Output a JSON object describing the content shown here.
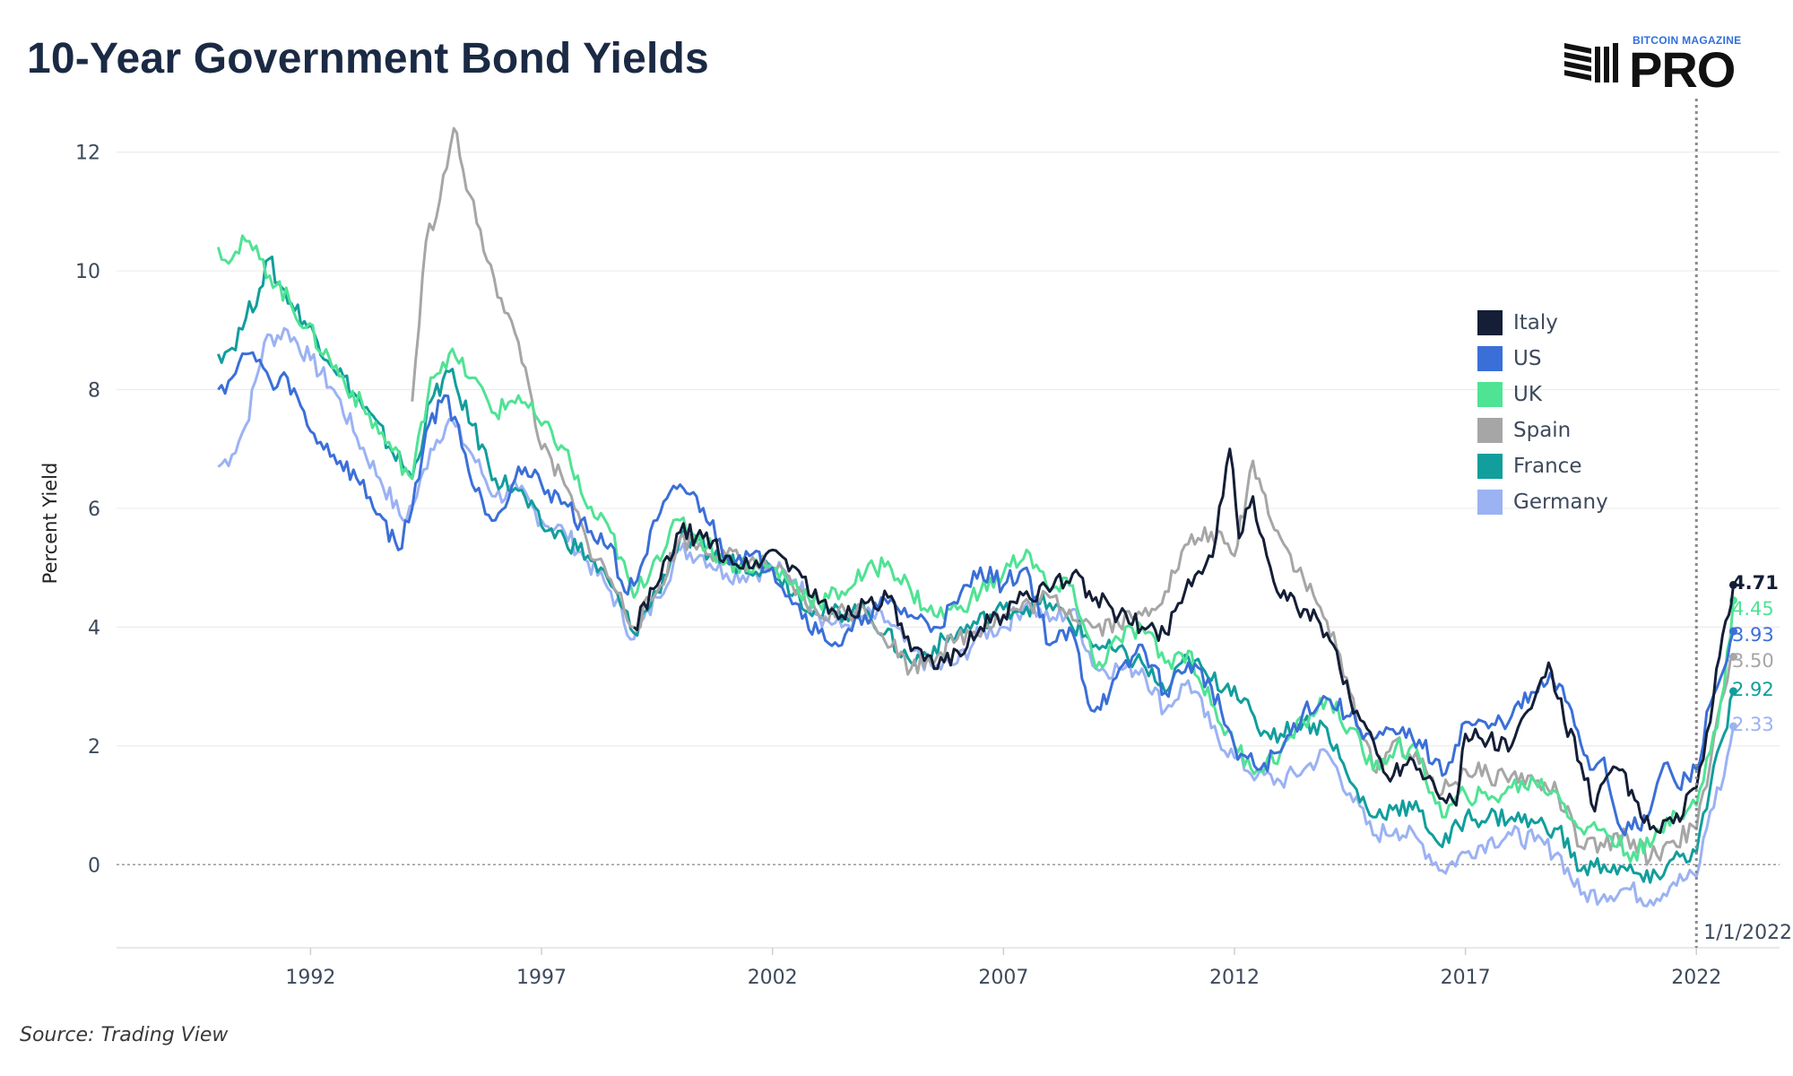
{
  "title": "10-Year Government Bond Yields",
  "logo": {
    "small_text": "BITCOIN MAGAZINE",
    "big_text": "PRO"
  },
  "source": "Source: Trading View",
  "colors": {
    "Italy": "#141e36",
    "US": "#3b6fd8",
    "UK": "#4fe394",
    "Spain": "#a6a6a6",
    "France": "#119e9c",
    "Germany": "#9bb2f3"
  },
  "chart_data": {
    "type": "line",
    "title": "10-Year Government Bond Yields",
    "xlabel": "",
    "ylabel": "Percent Yield",
    "xlim": [
      1987.8,
      2023.8
    ],
    "ylim": [
      -1.4,
      12.9
    ],
    "xticks": [
      1992,
      1997,
      2002,
      2007,
      2012,
      2017,
      2022
    ],
    "yticks": [
      0,
      2,
      4,
      6,
      8,
      10,
      12
    ],
    "grid": "horizontal",
    "legend": "right",
    "annotation": {
      "x": 2022,
      "label": "1/1/2022",
      "style": "dotted-vertical"
    },
    "zero_line": "dotted",
    "series": [
      {
        "name": "Germany",
        "color": "#9bb2f3",
        "end_label": "2.33",
        "x": [
          1990.0,
          1990.3,
          1990.6,
          1991.0,
          1991.5,
          1992.0,
          1992.5,
          1993.0,
          1993.5,
          1994.0,
          1994.3,
          1994.6,
          1995.0,
          1995.5,
          1996.0,
          1996.5,
          1997.0,
          1997.5,
          1998.0,
          1998.5,
          1999.0,
          1999.5,
          2000.0,
          2000.5,
          2001.0,
          2001.5,
          2002.0,
          2002.5,
          2003.0,
          2003.5,
          2004.0,
          2004.5,
          2005.0,
          2005.5,
          2006.0,
          2006.5,
          2007.0,
          2007.5,
          2008.0,
          2008.5,
          2009.0,
          2009.5,
          2010.0,
          2010.5,
          2011.0,
          2011.5,
          2012.0,
          2012.5,
          2013.0,
          2013.5,
          2014.0,
          2014.5,
          2015.0,
          2015.5,
          2016.0,
          2016.5,
          2017.0,
          2017.5,
          2018.0,
          2018.5,
          2019.0,
          2019.5,
          2020.0,
          2020.5,
          2021.0,
          2021.5,
          2022.0,
          2022.3,
          2022.6,
          2022.8
        ],
        "values": [
          6.7,
          6.9,
          7.4,
          8.8,
          9.0,
          8.5,
          8.0,
          7.2,
          6.5,
          5.8,
          6.2,
          7.0,
          7.5,
          6.9,
          6.2,
          6.3,
          5.8,
          5.6,
          5.1,
          4.6,
          3.8,
          4.5,
          5.3,
          5.2,
          4.9,
          4.9,
          5.0,
          4.8,
          4.2,
          4.0,
          4.2,
          4.1,
          3.6,
          3.3,
          3.4,
          3.9,
          4.0,
          4.4,
          4.1,
          4.3,
          3.3,
          3.3,
          3.3,
          2.6,
          3.1,
          2.3,
          1.8,
          1.5,
          1.4,
          1.6,
          1.9,
          1.2,
          0.5,
          0.6,
          0.4,
          -0.1,
          0.2,
          0.4,
          0.5,
          0.4,
          0.2,
          -0.5,
          -0.5,
          -0.4,
          -0.6,
          -0.3,
          -0.2,
          0.9,
          1.5,
          2.33
        ]
      },
      {
        "name": "France",
        "color": "#119e9c",
        "end_label": "2.92",
        "x": [
          1990.0,
          1990.3,
          1990.6,
          1990.9,
          1991.1,
          1991.3,
          1994.2,
          1994.6,
          1995.0,
          1995.5,
          1996.0,
          1996.5,
          1997.0,
          1997.5,
          1998.0,
          1998.5,
          1999.0,
          1999.5,
          2000.0,
          2001.0,
          2002.0,
          2003.0,
          2004.0,
          2005.0,
          2006.0,
          2007.0,
          2008.0,
          2009.0,
          2010.0,
          2010.5,
          2011.0,
          2011.5,
          2012.0,
          2012.5,
          2013.0,
          2013.5,
          2014.0,
          2014.5,
          2015.0,
          2015.5,
          2016.0,
          2016.5,
          2017.0,
          2017.5,
          2018.0,
          2018.5,
          2019.0,
          2019.5,
          2020.0,
          2020.5,
          2021.0,
          2021.5,
          2022.0,
          2022.3,
          2022.6,
          2022.8
        ],
        "values": [
          8.6,
          8.7,
          9.2,
          9.7,
          10.2,
          9.8,
          6.5,
          7.8,
          8.3,
          7.4,
          6.5,
          6.3,
          5.7,
          5.5,
          5.2,
          4.7,
          3.9,
          4.6,
          5.5,
          5.1,
          5.0,
          4.2,
          4.3,
          3.4,
          3.9,
          4.3,
          4.4,
          3.7,
          3.4,
          2.9,
          3.5,
          3.1,
          3.0,
          2.3,
          2.2,
          2.4,
          2.3,
          1.4,
          0.8,
          1.0,
          0.9,
          0.3,
          0.8,
          0.8,
          0.8,
          0.7,
          0.6,
          -0.1,
          0.0,
          -0.1,
          -0.3,
          0.1,
          0.2,
          1.3,
          2.2,
          2.92
        ]
      },
      {
        "name": "Spain",
        "color": "#a6a6a6",
        "end_label": "3.50",
        "x": [
          1994.2,
          1994.5,
          1994.8,
          1995.1,
          1995.3,
          1995.6,
          1995.9,
          1996.2,
          1996.5,
          1996.8,
          1997.0,
          1997.5,
          1998.0,
          1998.5,
          1999.0,
          1999.5,
          2000.0,
          2001.0,
          2002.0,
          2003.0,
          2004.0,
          2005.0,
          2006.0,
          2007.0,
          2008.0,
          2009.0,
          2010.0,
          2010.5,
          2011.0,
          2011.5,
          2012.0,
          2012.4,
          2012.6,
          2013.0,
          2013.5,
          2014.0,
          2014.5,
          2015.0,
          2015.5,
          2016.0,
          2016.5,
          2017.0,
          2017.5,
          2018.0,
          2018.5,
          2019.0,
          2019.5,
          2020.0,
          2020.5,
          2021.0,
          2021.5,
          2022.0,
          2022.3,
          2022.6,
          2022.8
        ],
        "values": [
          7.8,
          10.5,
          11.2,
          12.4,
          11.7,
          10.8,
          10.1,
          9.3,
          8.8,
          7.8,
          7.0,
          6.4,
          5.4,
          4.8,
          4.0,
          4.6,
          5.5,
          5.2,
          5.0,
          4.2,
          4.3,
          3.3,
          3.8,
          4.2,
          4.5,
          4.0,
          4.2,
          4.6,
          5.4,
          5.6,
          5.2,
          6.8,
          6.3,
          5.5,
          4.8,
          4.1,
          2.9,
          1.6,
          2.1,
          1.7,
          1.2,
          1.6,
          1.5,
          1.5,
          1.4,
          1.2,
          0.3,
          0.3,
          0.5,
          0.1,
          0.4,
          0.6,
          1.7,
          2.9,
          3.5
        ]
      },
      {
        "name": "UK",
        "color": "#4fe394",
        "end_label": "4.45",
        "x": [
          1990.0,
          1990.3,
          1990.6,
          1990.9,
          1994.2,
          1994.6,
          1995.0,
          1995.5,
          1996.0,
          1996.5,
          1997.0,
          1997.5,
          1998.0,
          1998.5,
          1999.0,
          1999.5,
          2000.0,
          2001.0,
          2002.0,
          2003.0,
          2003.5,
          2004.0,
          2004.5,
          2005.0,
          2005.5,
          2006.0,
          2006.5,
          2007.0,
          2007.5,
          2008.0,
          2008.5,
          2009.0,
          2009.5,
          2010.0,
          2010.5,
          2011.0,
          2011.5,
          2012.0,
          2012.5,
          2013.0,
          2013.5,
          2014.0,
          2014.5,
          2015.0,
          2015.5,
          2016.0,
          2016.5,
          2017.0,
          2017.5,
          2018.0,
          2018.5,
          2019.0,
          2019.5,
          2020.0,
          2020.5,
          2021.0,
          2021.5,
          2022.0,
          2022.3,
          2022.6,
          2022.8
        ],
        "values": [
          10.4,
          10.2,
          10.5,
          10.2,
          6.5,
          8.2,
          8.6,
          8.2,
          7.6,
          7.9,
          7.4,
          7.0,
          6.0,
          5.6,
          4.5,
          5.2,
          5.8,
          5.1,
          5.0,
          4.4,
          4.6,
          4.9,
          5.1,
          4.6,
          4.2,
          4.3,
          4.6,
          4.9,
          5.3,
          4.6,
          4.7,
          3.3,
          3.8,
          4.0,
          3.4,
          3.6,
          2.7,
          2.0,
          1.6,
          1.9,
          2.4,
          2.8,
          2.3,
          1.6,
          2.0,
          1.8,
          0.8,
          1.2,
          1.1,
          1.3,
          1.4,
          1.2,
          0.6,
          0.6,
          0.2,
          0.3,
          0.9,
          1.0,
          1.9,
          3.0,
          4.45
        ]
      },
      {
        "name": "US",
        "color": "#3b6fd8",
        "end_label": "3.93",
        "x": [
          1990.0,
          1990.3,
          1990.6,
          1990.9,
          1991.2,
          1991.5,
          1992.0,
          1992.5,
          1993.0,
          1993.5,
          1993.9,
          1994.2,
          1994.5,
          1994.9,
          1995.2,
          1995.5,
          1996.0,
          1996.5,
          1997.0,
          1997.5,
          1998.0,
          1998.5,
          1998.8,
          1999.0,
          1999.5,
          2000.0,
          2000.5,
          2001.0,
          2001.5,
          2002.0,
          2002.5,
          2003.0,
          2003.5,
          2004.0,
          2004.5,
          2005.0,
          2005.5,
          2006.0,
          2006.5,
          2007.0,
          2007.5,
          2008.0,
          2008.5,
          2008.9,
          2009.3,
          2010.0,
          2010.5,
          2011.0,
          2011.5,
          2012.0,
          2012.5,
          2013.0,
          2013.5,
          2014.0,
          2014.5,
          2015.0,
          2015.5,
          2016.0,
          2016.5,
          2017.0,
          2017.5,
          2018.0,
          2018.5,
          2018.9,
          2019.3,
          2019.7,
          2020.0,
          2020.3,
          2020.6,
          2021.0,
          2021.3,
          2021.6,
          2022.0,
          2022.3,
          2022.6,
          2022.8
        ],
        "values": [
          8.0,
          8.2,
          8.6,
          8.5,
          8.0,
          8.2,
          7.3,
          6.9,
          6.5,
          5.9,
          5.3,
          6.0,
          7.3,
          7.9,
          7.4,
          6.4,
          5.8,
          6.7,
          6.4,
          6.1,
          5.6,
          5.4,
          4.6,
          4.7,
          5.8,
          6.4,
          6.0,
          5.2,
          5.2,
          5.0,
          4.4,
          3.9,
          3.7,
          4.2,
          4.4,
          4.2,
          4.0,
          4.4,
          5.0,
          4.7,
          5.0,
          3.7,
          3.9,
          2.6,
          2.9,
          3.7,
          2.9,
          3.4,
          3.0,
          2.0,
          1.6,
          1.9,
          2.6,
          2.8,
          2.5,
          2.1,
          2.2,
          2.1,
          1.5,
          2.4,
          2.3,
          2.5,
          2.9,
          3.1,
          2.6,
          1.6,
          1.8,
          0.7,
          0.6,
          0.9,
          1.7,
          1.3,
          1.6,
          2.7,
          3.3,
          3.93
        ]
      },
      {
        "name": "Italy",
        "color": "#141e36",
        "end_label": "4.71",
        "x": [
          1999.0,
          1999.5,
          2000.0,
          2000.5,
          2001.0,
          2001.5,
          2002.0,
          2002.5,
          2003.0,
          2003.5,
          2004.0,
          2004.5,
          2005.0,
          2005.5,
          2006.0,
          2006.5,
          2007.0,
          2007.5,
          2008.0,
          2008.5,
          2009.0,
          2009.5,
          2010.0,
          2010.5,
          2011.0,
          2011.3,
          2011.6,
          2011.9,
          2012.1,
          2012.4,
          2012.7,
          2013.0,
          2013.5,
          2014.0,
          2014.5,
          2014.8,
          2015.3,
          2015.8,
          2016.3,
          2016.8,
          2017.0,
          2017.5,
          2018.0,
          2018.5,
          2018.8,
          2019.0,
          2019.5,
          2019.8,
          2020.0,
          2020.4,
          2020.8,
          2021.0,
          2021.5,
          2022.0,
          2022.3,
          2022.5,
          2022.7,
          2022.8
        ],
        "values": [
          4.0,
          4.7,
          5.6,
          5.5,
          5.2,
          5.0,
          5.3,
          5.0,
          4.4,
          4.2,
          4.4,
          4.5,
          3.6,
          3.3,
          3.6,
          4.0,
          4.2,
          4.6,
          4.6,
          4.9,
          4.5,
          4.2,
          4.0,
          3.9,
          4.8,
          4.9,
          5.5,
          7.0,
          5.5,
          6.2,
          5.2,
          4.5,
          4.3,
          3.9,
          2.8,
          2.4,
          1.5,
          1.8,
          1.4,
          1.0,
          2.2,
          2.1,
          2.0,
          2.8,
          3.4,
          2.8,
          1.7,
          0.9,
          1.4,
          1.6,
          0.8,
          0.6,
          0.7,
          1.3,
          2.4,
          3.5,
          4.2,
          4.71
        ]
      }
    ]
  }
}
